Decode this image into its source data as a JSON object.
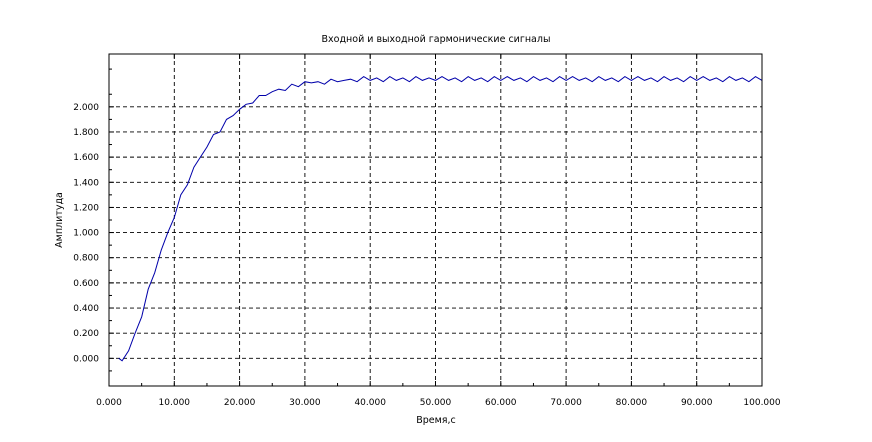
{
  "chart_data": {
    "type": "line",
    "title": "Входной и выходной гармонические сигналы",
    "xlabel": "Время,с",
    "ylabel": "Амплитуда",
    "xlim": [
      0,
      100
    ],
    "ylim": [
      -0.22,
      2.42
    ],
    "grid": true,
    "x_ticks": [
      0,
      10,
      20,
      30,
      40,
      50,
      60,
      70,
      80,
      90,
      100
    ],
    "x_tick_labels": [
      "0.000",
      "10.000",
      "20.000",
      "30.000",
      "40.000",
      "50.000",
      "60.000",
      "70.000",
      "80.000",
      "90.000",
      "100.000"
    ],
    "y_ticks": [
      0,
      0.2,
      0.4,
      0.6,
      0.8,
      1.0,
      1.2,
      1.4,
      1.6,
      1.8,
      2.0
    ],
    "y_tick_labels": [
      "0.000",
      "0.200",
      "0.400",
      "0.600",
      "0.800",
      "1.000",
      "1.200",
      "1.400",
      "1.600",
      "1.800",
      "2.000"
    ],
    "series": [
      {
        "color": "#0000aa",
        "x": [
          1.5,
          2,
          3,
          4,
          5,
          6,
          7,
          8,
          9,
          10,
          11,
          12,
          13,
          14,
          15,
          16,
          17,
          18,
          19,
          20,
          21,
          22,
          23,
          24,
          25,
          26,
          27,
          28,
          29,
          30,
          31,
          32,
          33,
          34,
          35,
          36,
          37,
          38,
          39,
          40,
          41,
          42,
          43,
          44,
          45,
          46,
          47,
          48,
          49,
          50,
          51,
          52,
          53,
          54,
          55,
          56,
          57,
          58,
          59,
          60,
          61,
          62,
          63,
          64,
          65,
          66,
          67,
          68,
          69,
          70,
          71,
          72,
          73,
          74,
          75,
          76,
          77,
          78,
          79,
          80,
          81,
          82,
          83,
          84,
          85,
          86,
          87,
          88,
          89,
          90,
          91,
          92,
          93,
          94,
          95,
          96,
          97,
          98,
          99,
          100
        ],
        "y": [
          0.0,
          -0.02,
          0.06,
          0.2,
          0.33,
          0.55,
          0.68,
          0.86,
          1.0,
          1.12,
          1.3,
          1.38,
          1.52,
          1.6,
          1.68,
          1.78,
          1.8,
          1.9,
          1.93,
          1.98,
          2.02,
          2.03,
          2.09,
          2.09,
          2.12,
          2.14,
          2.13,
          2.18,
          2.16,
          2.2,
          2.19,
          2.2,
          2.18,
          2.22,
          2.2,
          2.21,
          2.22,
          2.2,
          2.24,
          2.21,
          2.23,
          2.2,
          2.24,
          2.21,
          2.23,
          2.2,
          2.24,
          2.21,
          2.23,
          2.21,
          2.24,
          2.21,
          2.23,
          2.2,
          2.24,
          2.21,
          2.23,
          2.2,
          2.24,
          2.21,
          2.24,
          2.21,
          2.23,
          2.2,
          2.24,
          2.21,
          2.23,
          2.2,
          2.24,
          2.21,
          2.24,
          2.21,
          2.23,
          2.2,
          2.24,
          2.21,
          2.23,
          2.2,
          2.24,
          2.21,
          2.24,
          2.21,
          2.23,
          2.2,
          2.24,
          2.21,
          2.23,
          2.2,
          2.24,
          2.21,
          2.24,
          2.21,
          2.23,
          2.2,
          2.24,
          2.21,
          2.23,
          2.2,
          2.24,
          2.21
        ]
      }
    ]
  }
}
